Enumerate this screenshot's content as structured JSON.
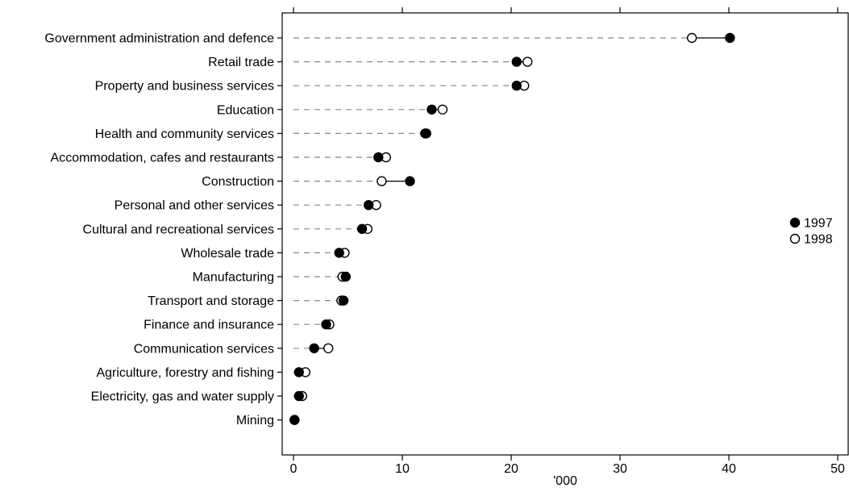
{
  "chart_data": {
    "type": "scatter",
    "orientation": "horizontal",
    "categories": [
      "Government administration and defence",
      "Retail trade",
      "Property and business services",
      "Education",
      "Health and community services",
      "Accommodation, cafes and restaurants",
      "Construction",
      "Personal and other services",
      "Cultural and recreational services",
      "Wholesale trade",
      "Manufacturing",
      "Transport and storage",
      "Finance and insurance",
      "Communication services",
      "Agriculture, forestry and fishing",
      "Electricity, gas and water supply",
      "Mining"
    ],
    "series": [
      {
        "name": "1997",
        "marker": "filled-circle",
        "values": [
          40.1,
          20.5,
          20.5,
          12.7,
          12.1,
          7.8,
          10.7,
          6.9,
          6.3,
          4.2,
          4.8,
          4.6,
          3.0,
          1.9,
          0.5,
          0.5,
          0.1
        ]
      },
      {
        "name": "1998",
        "marker": "open-circle",
        "values": [
          36.6,
          21.5,
          21.2,
          13.7,
          12.2,
          8.5,
          8.1,
          7.6,
          6.8,
          4.7,
          4.5,
          4.4,
          3.3,
          3.2,
          1.1,
          0.8,
          0.1
        ]
      }
    ],
    "xlabel": "'000",
    "xlim": [
      0,
      50
    ],
    "xticks": [
      0,
      10,
      20,
      30,
      40,
      50
    ],
    "grid": false,
    "legend": "right",
    "colors": {
      "marker": "#000000",
      "leader": "#888888",
      "background": "#ffffff"
    }
  }
}
